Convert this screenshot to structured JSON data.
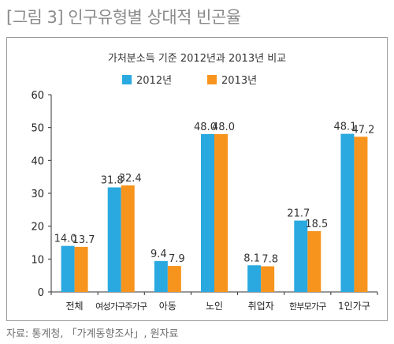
{
  "figure_title": "[그림 3] 인구유형별 상대적 빈곤율",
  "source": "자료: 통계청, 「가계동향조사」, 원자료",
  "colors": {
    "s2012": "#29a9e0",
    "s2013": "#f7941d",
    "axis": "#333333",
    "grid": "#dddddd"
  },
  "chart_data": {
    "type": "bar",
    "title": "가처분소득 기준 2012년과 2013년 비교",
    "xlabel": "",
    "ylabel": "",
    "ylim": [
      0,
      60
    ],
    "yticks": [
      "0",
      "10",
      "20",
      "30",
      "40",
      "50",
      "60"
    ],
    "grid": false,
    "legend": "top-center",
    "categories": [
      "전체",
      "여성가구주가구",
      "아동",
      "노인",
      "취업자",
      "한부모가구",
      "1인가구"
    ],
    "series": [
      {
        "name": "2012년",
        "values": [
          14.0,
          31.8,
          9.4,
          48.0,
          8.1,
          21.7,
          48.1
        ],
        "labels": [
          "14.0",
          "31.8",
          "9.4",
          "48.0",
          "8.1",
          "21.7",
          "48.1"
        ]
      },
      {
        "name": "2013년",
        "values": [
          13.7,
          32.4,
          7.9,
          48.0,
          7.8,
          18.5,
          47.2
        ],
        "labels": [
          "13.7",
          "32.4",
          "7.9",
          "48.0",
          "7.8",
          "18.5",
          "47.2"
        ]
      }
    ]
  }
}
